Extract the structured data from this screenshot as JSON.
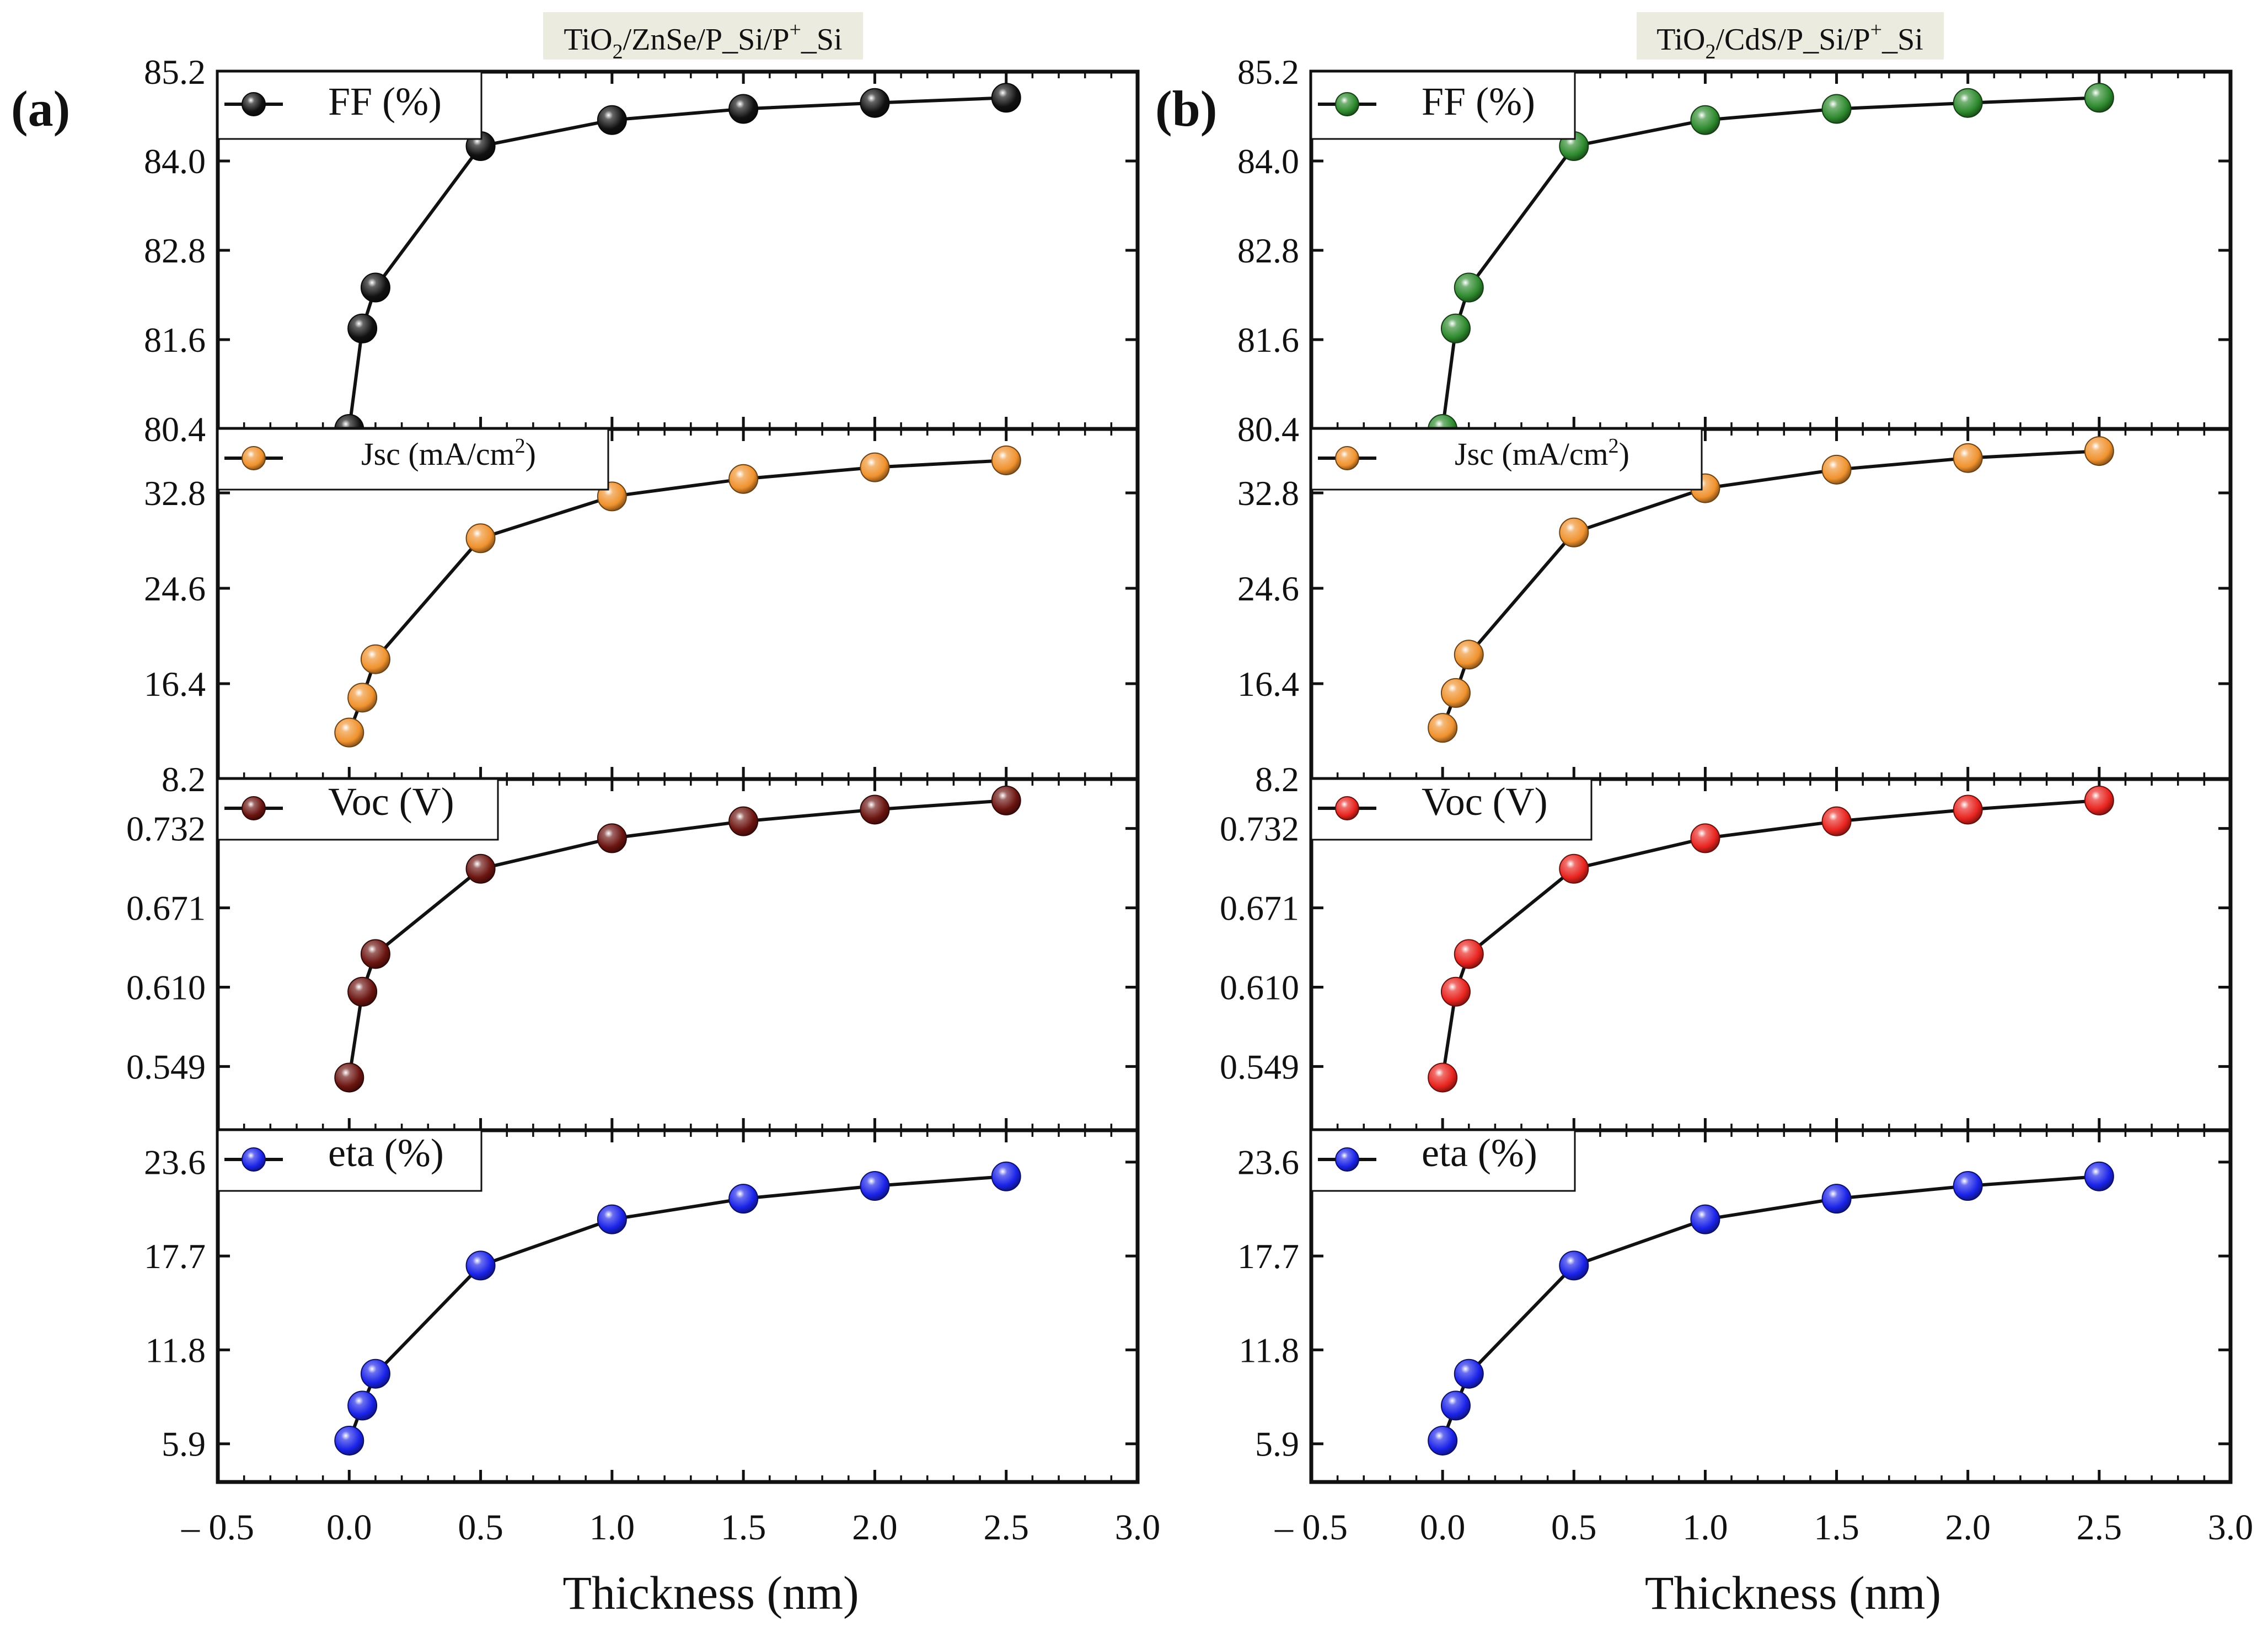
{
  "figure": {
    "x_title": "Thickness (nm)",
    "x_ticks": [
      "– 0.5",
      "0.0",
      "0.5",
      "1.0",
      "1.5",
      "2.0",
      "2.5",
      "3.0"
    ],
    "x_range": [
      -0.5,
      3.0
    ]
  },
  "colors": {
    "FF_a": "#111111",
    "Jsc": "#f0922e",
    "Voc_a": "#6b1410",
    "eta": "#1a22e8",
    "FF_b": "#2e8a2e",
    "Voc_b": "#e8231e"
  },
  "chart_data": [
    {
      "type": "line",
      "panel": "(a)",
      "title": "TiO2/ZnSe/P_Si/P+_Si",
      "title_parts": {
        "a": "TiO",
        "sub": "2",
        "b": "/ZnSe/P_Si/P",
        "sup": "+",
        "c": "_Si"
      },
      "xlabel": "Thickness (nm)",
      "xlim": [
        -0.5,
        3.0
      ],
      "x": [
        0.0,
        0.05,
        0.1,
        0.5,
        1.0,
        1.5,
        2.0,
        2.5
      ],
      "subplots": [
        {
          "name": "FF (%)",
          "legend": "FF (%)",
          "ylim": [
            80.4,
            85.2
          ],
          "yticks": [
            "85.2",
            "84.0",
            "82.8",
            "81.6",
            "80.4"
          ],
          "values": [
            80.4,
            81.75,
            82.3,
            84.2,
            84.55,
            84.7,
            84.78,
            84.85
          ]
        },
        {
          "name": "Jsc (mA/cm2)",
          "legend": "Jsc (mA/cm",
          "legend_sup": "2",
          "legend_end": ")",
          "ylim": [
            8.2,
            38.3
          ],
          "yticks": [
            "32.8",
            "24.6",
            "16.4",
            "8.2"
          ],
          "values": [
            12.2,
            15.2,
            18.5,
            28.9,
            32.5,
            34.0,
            35.0,
            35.6
          ]
        },
        {
          "name": "Voc (V)",
          "legend": "Voc (V)",
          "ylim": [
            0.5,
            0.77
          ],
          "yticks": [
            "0.732",
            "0.671",
            "0.610",
            "0.549"
          ],
          "values": [
            0.5405,
            0.6065,
            0.6355,
            0.701,
            0.7245,
            0.7375,
            0.7465,
            0.7535
          ]
        },
        {
          "name": "eta (%)",
          "legend": "eta (%)",
          "ylim": [
            3.5,
            25.6
          ],
          "yticks": [
            "23.6",
            "17.7",
            "11.8",
            "5.9"
          ],
          "values": [
            6.1,
            8.3,
            10.3,
            17.1,
            20.0,
            21.3,
            22.1,
            22.7
          ]
        }
      ]
    },
    {
      "type": "line",
      "panel": "(b)",
      "title": "TiO2/CdS/P_Si/P+_Si",
      "title_parts": {
        "a": "TiO",
        "sub": "2",
        "b": "/CdS/P_Si/P",
        "sup": "+",
        "c": "_Si"
      },
      "xlabel": "Thickness (nm)",
      "xlim": [
        -0.5,
        3.0
      ],
      "x": [
        0.0,
        0.05,
        0.1,
        0.5,
        1.0,
        1.5,
        2.0,
        2.5
      ],
      "subplots": [
        {
          "name": "FF (%)",
          "legend": "FF (%)",
          "ylim": [
            80.4,
            85.2
          ],
          "yticks": [
            "85.2",
            "84.0",
            "82.8",
            "81.6",
            "80.4"
          ],
          "values": [
            80.4,
            81.75,
            82.3,
            84.2,
            84.55,
            84.7,
            84.78,
            84.85
          ]
        },
        {
          "name": "Jsc (mA/cm2)",
          "legend": "Jsc (mA/cm",
          "legend_sup": "2",
          "legend_end": ")",
          "ylim": [
            8.2,
            38.3
          ],
          "yticks": [
            "32.8",
            "24.6",
            "16.4",
            "8.2"
          ],
          "values": [
            12.6,
            15.6,
            18.9,
            29.4,
            33.2,
            34.8,
            35.8,
            36.4
          ]
        },
        {
          "name": "Voc (V)",
          "legend": "Voc (V)",
          "ylim": [
            0.5,
            0.77
          ],
          "yticks": [
            "0.732",
            "0.671",
            "0.610",
            "0.549"
          ],
          "values": [
            0.5405,
            0.6065,
            0.6355,
            0.701,
            0.7245,
            0.7375,
            0.7465,
            0.7535
          ]
        },
        {
          "name": "eta (%)",
          "legend": "eta (%)",
          "ylim": [
            3.5,
            25.6
          ],
          "yticks": [
            "23.6",
            "17.7",
            "11.8",
            "5.9"
          ],
          "values": [
            6.1,
            8.3,
            10.3,
            17.1,
            20.0,
            21.3,
            22.1,
            22.7
          ]
        }
      ]
    }
  ]
}
